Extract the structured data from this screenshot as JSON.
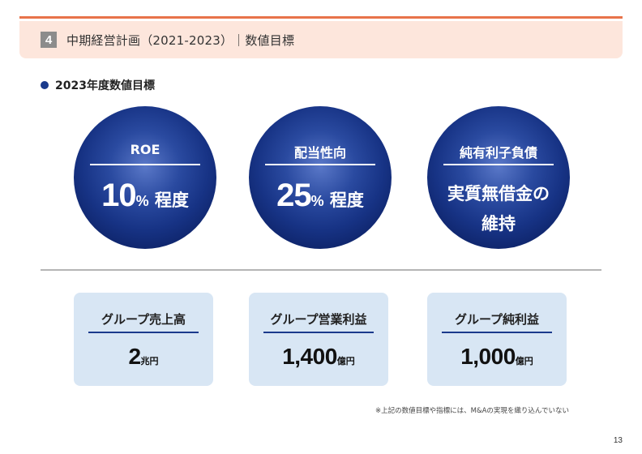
{
  "header": {
    "section_number": "4",
    "title": "中期経営計画（2021-2023）｜数値目標"
  },
  "section_label": "2023年度数値目標",
  "circles": [
    {
      "head": "ROE",
      "value": "10",
      "value_unit": "%",
      "suffix": " 程度"
    },
    {
      "head": "配当性向",
      "value": "25",
      "value_unit": "%",
      "suffix": " 程度"
    },
    {
      "head": "純有利子負債",
      "text_line1": "実質無借金の",
      "text_line2": "維持"
    }
  ],
  "cards": [
    {
      "head": "グループ売上高",
      "value": "2",
      "unit": "兆円"
    },
    {
      "head": "グループ営業利益",
      "value": "1,400",
      "unit": "億円"
    },
    {
      "head": "グループ純利益",
      "value": "1,000",
      "unit": "億円"
    }
  ],
  "footnote": "※上記の数値目標や指標には、M&Aの実現を織り込んでいない",
  "page_number": "13",
  "colors": {
    "accent_orange": "#e8734a",
    "header_bg": "#fde6dc",
    "navy": "#1a3a8c",
    "card_bg": "#d8e6f4"
  }
}
